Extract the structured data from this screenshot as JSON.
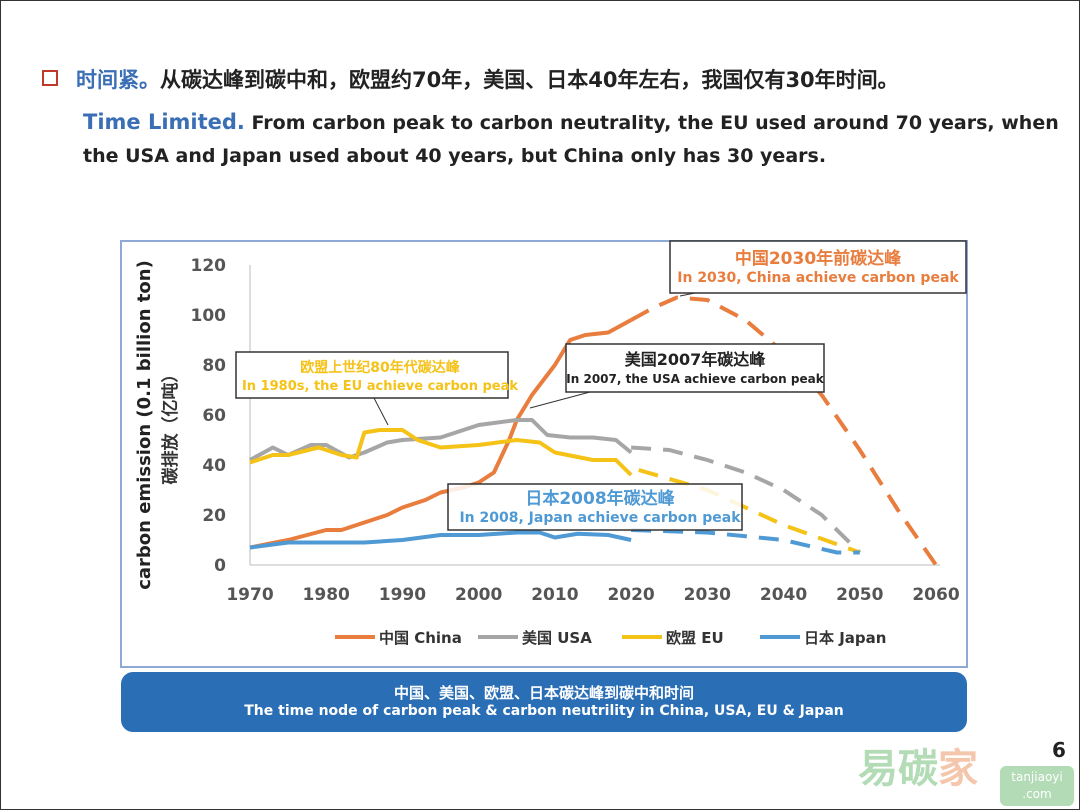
{
  "header": {
    "zh_title": "时间紧。",
    "zh_text": "从碳达峰到碳中和，欧盟约70年，美国、日本40年左右，我国仅有30年时间。",
    "en_title": "Time Limited.",
    "en_text": "From carbon peak to carbon neutrality, the EU used around 70 years, when the USA and Japan used about 40 years, but China only has 30 years."
  },
  "banner": {
    "zh": "中国、美国、欧盟、日本碳达峰到碳中和时间",
    "en": "The time node of carbon peak & carbon neutrility in China, USA, EU & Japan"
  },
  "page_number": "6",
  "watermark": {
    "text": "易碳家",
    "domain": "tanjiaoyi .com"
  },
  "chart_data": {
    "type": "line",
    "ylabel": "carbon emission (0.1 billion ton)",
    "ylabel_zh": "碳排放（亿吨）",
    "xlim": [
      1970,
      2060
    ],
    "ylim": [
      0,
      120
    ],
    "xticks": [
      "1970",
      "1980",
      "1990",
      "2000",
      "2010",
      "2020",
      "2030",
      "2040",
      "2050",
      "2060"
    ],
    "yticks": [
      "0",
      "20",
      "40",
      "60",
      "80",
      "100",
      "120"
    ],
    "grid": false,
    "legend_position": "bottom",
    "series": [
      {
        "name": "中国 China",
        "color": "#e87d3e",
        "actual": [
          [
            1970,
            7
          ],
          [
            1975,
            10
          ],
          [
            1980,
            14
          ],
          [
            1982,
            14
          ],
          [
            1985,
            17
          ],
          [
            1988,
            20
          ],
          [
            1990,
            23
          ],
          [
            1993,
            26
          ],
          [
            1995,
            29
          ],
          [
            1998,
            31
          ],
          [
            2000,
            33
          ],
          [
            2002,
            37
          ],
          [
            2004,
            50
          ],
          [
            2005,
            58
          ],
          [
            2007,
            68
          ],
          [
            2008,
            72
          ],
          [
            2010,
            80
          ],
          [
            2012,
            90
          ],
          [
            2014,
            92
          ],
          [
            2017,
            93
          ],
          [
            2020,
            98
          ]
        ],
        "projected": [
          [
            2020,
            98
          ],
          [
            2023,
            103
          ],
          [
            2026,
            107
          ],
          [
            2030,
            106
          ],
          [
            2035,
            98
          ],
          [
            2040,
            85
          ],
          [
            2045,
            68
          ],
          [
            2050,
            46
          ],
          [
            2055,
            22
          ],
          [
            2060,
            0
          ]
        ]
      },
      {
        "name": "美国 USA",
        "color": "#a6a6a6",
        "actual": [
          [
            1970,
            42
          ],
          [
            1973,
            47
          ],
          [
            1975,
            44
          ],
          [
            1978,
            48
          ],
          [
            1980,
            48
          ],
          [
            1983,
            43
          ],
          [
            1985,
            45
          ],
          [
            1988,
            49
          ],
          [
            1990,
            50
          ],
          [
            1995,
            51
          ],
          [
            2000,
            56
          ],
          [
            2005,
            58
          ],
          [
            2007,
            58
          ],
          [
            2009,
            52
          ],
          [
            2012,
            51
          ],
          [
            2015,
            51
          ],
          [
            2018,
            50
          ],
          [
            2020,
            45
          ]
        ],
        "projected": [
          [
            2020,
            47
          ],
          [
            2025,
            46
          ],
          [
            2030,
            42
          ],
          [
            2035,
            37
          ],
          [
            2040,
            30
          ],
          [
            2045,
            20
          ],
          [
            2050,
            5
          ]
        ]
      },
      {
        "name": "欧盟 EU",
        "color": "#f5c218",
        "actual": [
          [
            1970,
            41
          ],
          [
            1973,
            44
          ],
          [
            1975,
            44
          ],
          [
            1979,
            47
          ],
          [
            1982,
            44
          ],
          [
            1984,
            43
          ],
          [
            1985,
            53
          ],
          [
            1987,
            54
          ],
          [
            1990,
            54
          ],
          [
            1992,
            50
          ],
          [
            1995,
            47
          ],
          [
            2000,
            48
          ],
          [
            2005,
            50
          ],
          [
            2008,
            49
          ],
          [
            2010,
            45
          ],
          [
            2015,
            42
          ],
          [
            2018,
            42
          ],
          [
            2020,
            36
          ]
        ],
        "projected": [
          [
            2021,
            38
          ],
          [
            2030,
            30
          ],
          [
            2040,
            16
          ],
          [
            2050,
            5
          ]
        ]
      },
      {
        "name": "日本 Japan",
        "color": "#4f9ad4",
        "actual": [
          [
            1970,
            7
          ],
          [
            1975,
            9
          ],
          [
            1980,
            9
          ],
          [
            1985,
            9
          ],
          [
            1990,
            10
          ],
          [
            1995,
            12
          ],
          [
            2000,
            12
          ],
          [
            2005,
            13
          ],
          [
            2008,
            13
          ],
          [
            2010,
            11
          ],
          [
            2013,
            12.5
          ],
          [
            2017,
            12
          ],
          [
            2020,
            10
          ]
        ],
        "projected": [
          [
            2020,
            14
          ],
          [
            2030,
            13
          ],
          [
            2040,
            10
          ],
          [
            2047,
            5
          ],
          [
            2050,
            5
          ]
        ]
      }
    ],
    "annotations": [
      {
        "zh": "欧盟上世纪80年代碳达峰",
        "en": "In 1980s, the EU achieve carbon peak",
        "color": "#f5c218"
      },
      {
        "zh": "美国2007年碳达峰",
        "en": "In 2007, the USA achieve carbon peak",
        "color": "#222222"
      },
      {
        "zh": "中国2030年前碳达峰",
        "en": "In 2030, China achieve carbon peak",
        "color": "#e87d3e"
      },
      {
        "zh": "日本2008年碳达峰",
        "en": "In 2008, Japan achieve carbon peak",
        "color": "#4f9ad4"
      }
    ]
  }
}
